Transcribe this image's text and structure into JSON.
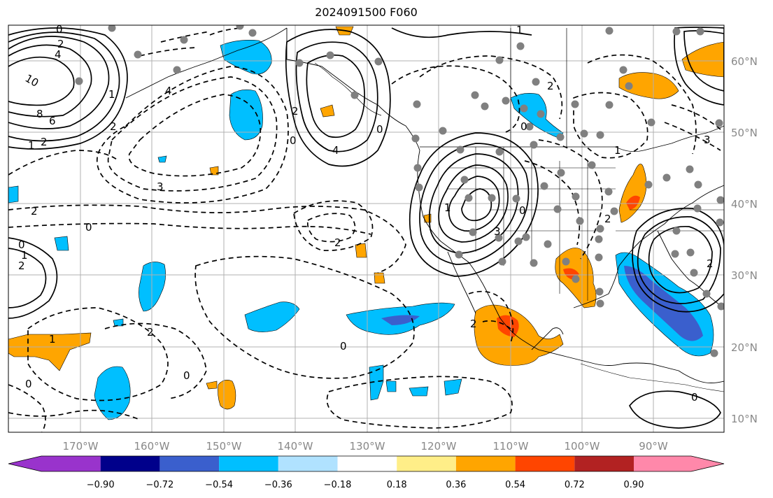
{
  "title": "2024091500 F060",
  "longitude_labels": [
    "170°W",
    "160°W",
    "150°W",
    "140°W",
    "130°W",
    "120°W",
    "110°W",
    "100°W",
    "90°W"
  ],
  "latitude_labels": [
    "60°N",
    "50°N",
    "40°N",
    "30°N",
    "20°N",
    "10°N"
  ],
  "colorbar": {
    "tick_labels": [
      "−0.90",
      "−0.72",
      "−0.54",
      "−0.36",
      "−0.18",
      "0.18",
      "0.36",
      "0.54",
      "0.72",
      "0.90"
    ],
    "colors": [
      "#9933cc",
      "#00008b",
      "#3a5fcd",
      "#00bfff",
      "#b0e2ff",
      "#ffffff",
      "#ffee88",
      "#ffa500",
      "#ff4500",
      "#b22222",
      "#ff88aa"
    ]
  },
  "contour_labels": [
    {
      "text": "0",
      "id": "c0a"
    },
    {
      "text": "2",
      "id": "c2a"
    },
    {
      "text": "4",
      "id": "c4a"
    },
    {
      "text": "10",
      "id": "c10"
    },
    {
      "text": "8",
      "id": "c8"
    },
    {
      "text": "6",
      "id": "c6"
    },
    {
      "text": "2",
      "id": "c2b"
    },
    {
      "text": "4",
      "id": "c4b"
    },
    {
      "text": "2",
      "id": "c2c"
    },
    {
      "text": "1",
      "id": "c1a"
    },
    {
      "text": "3",
      "id": "c3a"
    },
    {
      "text": "2",
      "id": "c2d"
    },
    {
      "text": "0",
      "id": "c0b"
    },
    {
      "text": "0",
      "id": "c0c"
    },
    {
      "text": "1",
      "id": "c1b"
    },
    {
      "text": "2",
      "id": "c2e"
    },
    {
      "text": "2",
      "id": "c2f"
    },
    {
      "text": "0",
      "id": "c0d"
    },
    {
      "text": "4",
      "id": "c4c"
    },
    {
      "text": "2",
      "id": "c2g"
    },
    {
      "text": "0",
      "id": "c0e"
    },
    {
      "text": "1",
      "id": "c1c"
    },
    {
      "text": "2",
      "id": "c2h"
    },
    {
      "text": "1",
      "id": "c1d"
    },
    {
      "text": "3",
      "id": "c3b"
    },
    {
      "text": "0",
      "id": "c0f"
    },
    {
      "text": "2",
      "id": "c2i"
    },
    {
      "text": "0",
      "id": "c0g"
    },
    {
      "text": "2",
      "id": "c2j"
    },
    {
      "text": "0",
      "id": "c0h"
    },
    {
      "text": "1",
      "id": "c1e"
    },
    {
      "text": "0",
      "id": "c0i"
    },
    {
      "text": "2",
      "id": "c2k"
    },
    {
      "text": "0",
      "id": "c0j"
    },
    {
      "text": "3",
      "id": "c3c"
    },
    {
      "text": "2",
      "id": "c2l"
    },
    {
      "text": "1",
      "id": "c1f"
    },
    {
      "text": "1",
      "id": "c1g"
    },
    {
      "text": "0",
      "id": "c0k"
    }
  ]
}
